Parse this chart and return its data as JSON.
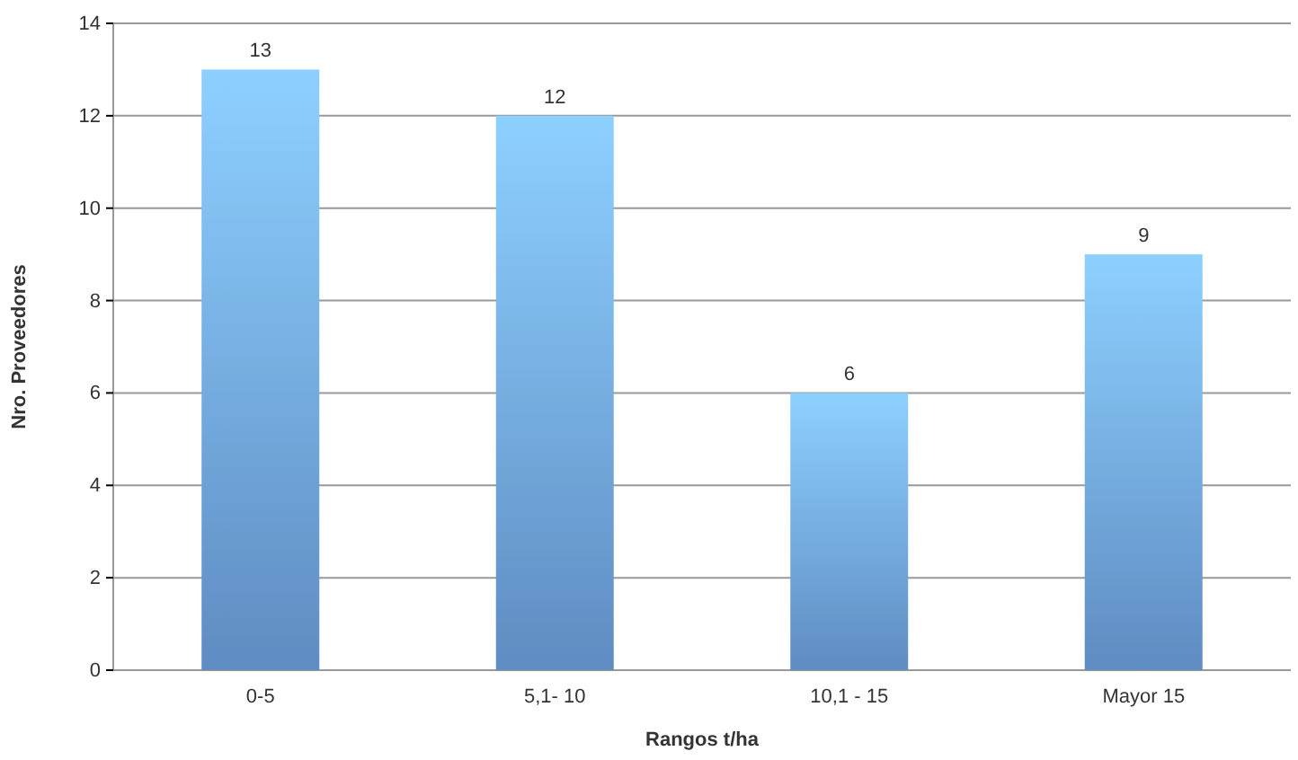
{
  "chart_data": {
    "type": "bar",
    "xlabel": "Rangos t/ha",
    "ylabel": "Nro. Proveedores",
    "categories": [
      "0-5",
      "5,1- 10",
      "10,1 - 15",
      "Mayor 15"
    ],
    "values": [
      13,
      12,
      6,
      9
    ],
    "color": "#6a9cd8",
    "ylim": [
      0,
      14
    ],
    "yticks": [
      0,
      2,
      4,
      6,
      8,
      10,
      12,
      14
    ],
    "grid": "y",
    "data_labels": true
  }
}
